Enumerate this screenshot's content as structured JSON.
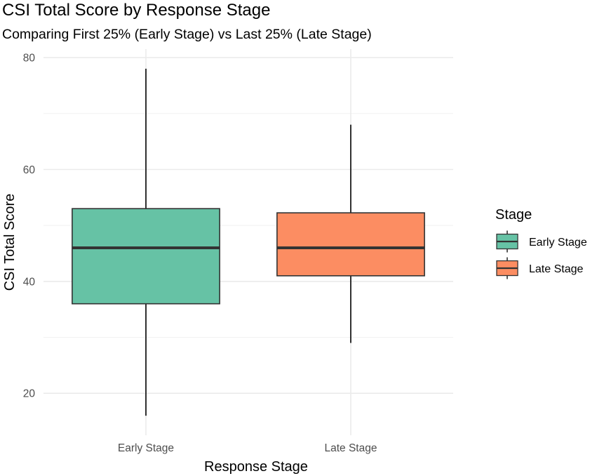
{
  "chart_data": {
    "type": "box",
    "title": "CSI Total Score by Response Stage",
    "subtitle": "Comparing First 25% (Early Stage) vs Last 25% (Late Stage)",
    "xlabel": "Response Stage",
    "ylabel": "CSI Total Score",
    "ylim": [
      12.5,
      81.5
    ],
    "yticks": [
      20,
      40,
      60,
      80
    ],
    "yminor": [
      30,
      50,
      70
    ],
    "grid": true,
    "legend": {
      "title": "Stage",
      "position": "right",
      "entries": [
        "Early Stage",
        "Late Stage"
      ]
    },
    "categories": [
      "Early Stage",
      "Late Stage"
    ],
    "series": [
      {
        "name": "Early Stage",
        "color": "#66c2a5",
        "min": 16,
        "q1": 36,
        "median": 46,
        "q3": 53,
        "max": 78
      },
      {
        "name": "Late Stage",
        "color": "#fc8d62",
        "min": 29,
        "q1": 41,
        "median": 46,
        "q3": 52.25,
        "max": 68
      }
    ]
  }
}
